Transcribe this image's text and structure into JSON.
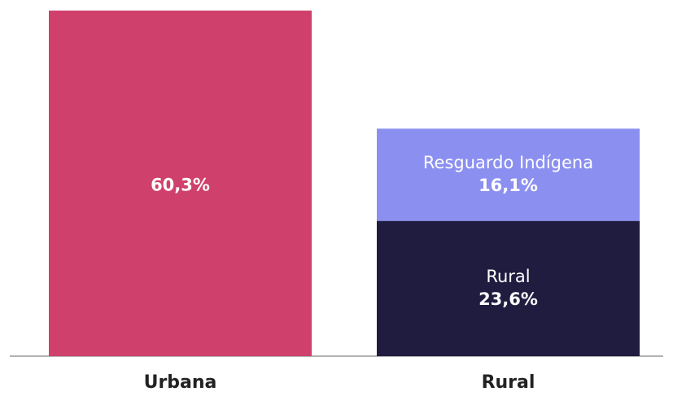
{
  "chart_data": {
    "type": "stacked_bar",
    "categories": [
      "Urbana",
      "Rural"
    ],
    "series": [
      {
        "color": "#d0406c",
        "values": [
          60.3,
          null
        ],
        "value_labels": [
          "60,3%",
          null
        ]
      },
      {
        "name": "Rural",
        "color": "#201c40",
        "values": [
          null,
          23.6
        ],
        "value_labels": [
          null,
          "23,6%"
        ]
      },
      {
        "name": "Resguardo Indígena",
        "color": "#8b8ff0",
        "values": [
          null,
          16.1
        ],
        "value_labels": [
          null,
          "16,1%"
        ]
      }
    ],
    "ylim": [
      0,
      60.3
    ]
  }
}
